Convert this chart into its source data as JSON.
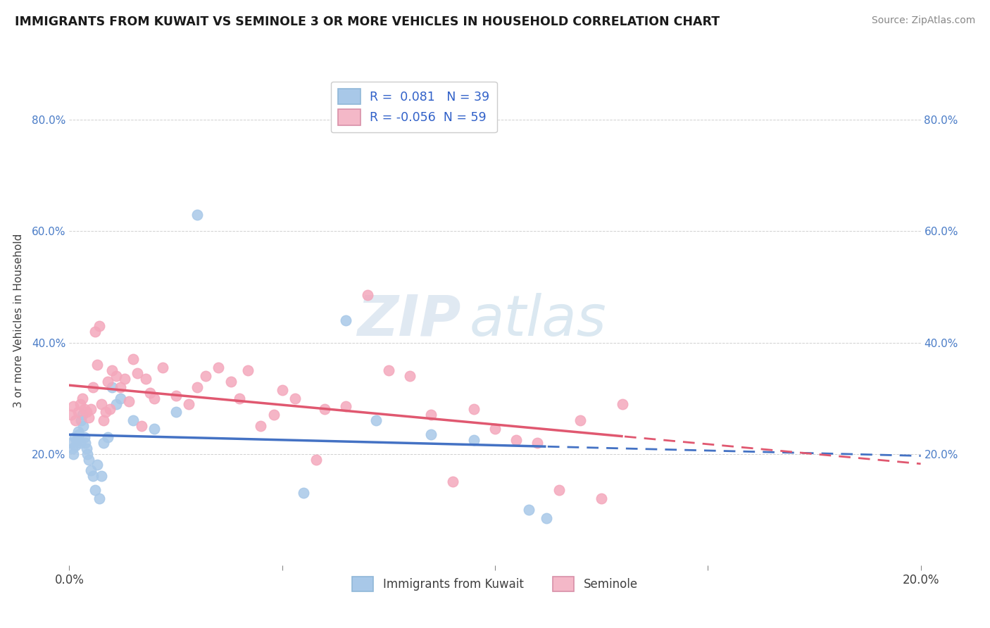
{
  "title": "IMMIGRANTS FROM KUWAIT VS SEMINOLE 3 OR MORE VEHICLES IN HOUSEHOLD CORRELATION CHART",
  "source_text": "Source: ZipAtlas.com",
  "ylabel": "3 or more Vehicles in Household",
  "legend_label1": "Immigrants from Kuwait",
  "legend_label2": "Seminole",
  "r1": 0.081,
  "n1": 39,
  "r2": -0.056,
  "n2": 59,
  "color_blue": "#a8c8e8",
  "color_pink": "#f4a8bc",
  "color_blue_line": "#4472c4",
  "color_pink_line": "#e05870",
  "color_blue_legend": "#a8c8e8",
  "color_pink_legend": "#f4b8c8",
  "blue_x": [
    0.05,
    0.08,
    0.1,
    0.12,
    0.15,
    0.18,
    0.2,
    0.22,
    0.25,
    0.28,
    0.3,
    0.32,
    0.35,
    0.38,
    0.4,
    0.42,
    0.45,
    0.5,
    0.55,
    0.6,
    0.65,
    0.7,
    0.75,
    0.8,
    0.9,
    1.0,
    1.1,
    1.2,
    1.5,
    2.0,
    2.5,
    3.0,
    5.5,
    6.5,
    7.2,
    8.5,
    9.5,
    10.8,
    11.2
  ],
  "blue_y": [
    22.0,
    21.0,
    20.0,
    23.0,
    21.5,
    22.5,
    24.0,
    23.5,
    22.0,
    26.0,
    27.0,
    25.0,
    23.0,
    22.0,
    21.0,
    20.0,
    19.0,
    17.0,
    16.0,
    13.5,
    18.0,
    12.0,
    16.0,
    22.0,
    23.0,
    32.0,
    29.0,
    30.0,
    26.0,
    24.5,
    27.5,
    63.0,
    13.0,
    44.0,
    26.0,
    23.5,
    22.5,
    10.0,
    8.5
  ],
  "pink_x": [
    0.05,
    0.1,
    0.15,
    0.2,
    0.25,
    0.3,
    0.35,
    0.4,
    0.45,
    0.5,
    0.55,
    0.6,
    0.65,
    0.7,
    0.75,
    0.8,
    0.85,
    0.9,
    0.95,
    1.0,
    1.1,
    1.2,
    1.3,
    1.4,
    1.5,
    1.6,
    1.7,
    1.8,
    1.9,
    2.0,
    2.2,
    2.5,
    2.8,
    3.0,
    3.2,
    3.5,
    3.8,
    4.0,
    4.2,
    4.5,
    4.8,
    5.0,
    5.3,
    5.8,
    6.0,
    6.5,
    7.0,
    7.5,
    8.0,
    8.5,
    9.0,
    9.5,
    10.0,
    10.5,
    11.0,
    11.5,
    12.0,
    12.5,
    13.0
  ],
  "pink_y": [
    27.0,
    28.5,
    26.0,
    27.5,
    29.0,
    30.0,
    28.0,
    27.5,
    26.5,
    28.0,
    32.0,
    42.0,
    36.0,
    43.0,
    29.0,
    26.0,
    27.5,
    33.0,
    28.0,
    35.0,
    34.0,
    32.0,
    33.5,
    29.5,
    37.0,
    34.5,
    25.0,
    33.5,
    31.0,
    30.0,
    35.5,
    30.5,
    29.0,
    32.0,
    34.0,
    35.5,
    33.0,
    30.0,
    35.0,
    25.0,
    27.0,
    31.5,
    30.0,
    19.0,
    28.0,
    28.5,
    48.5,
    35.0,
    34.0,
    27.0,
    15.0,
    28.0,
    24.5,
    22.5,
    22.0,
    13.5,
    26.0,
    12.0,
    29.0
  ],
  "xmin": 0.0,
  "xmax": 20.0,
  "ymin": 0.0,
  "ymax": 88.0,
  "ytick_positions": [
    0,
    20,
    40,
    60,
    80
  ],
  "ytick_labels_left": [
    "",
    "20.0%",
    "40.0%",
    "60.0%",
    "80.0%"
  ],
  "ytick_labels_right": [
    "20.0%",
    "40.0%",
    "60.0%",
    "80.0%"
  ],
  "ytick_positions_right": [
    20,
    40,
    60,
    80
  ],
  "watermark_zip": "ZIP",
  "watermark_atlas": "atlas",
  "background_color": "#ffffff",
  "grid_color": "#d0d0d0"
}
